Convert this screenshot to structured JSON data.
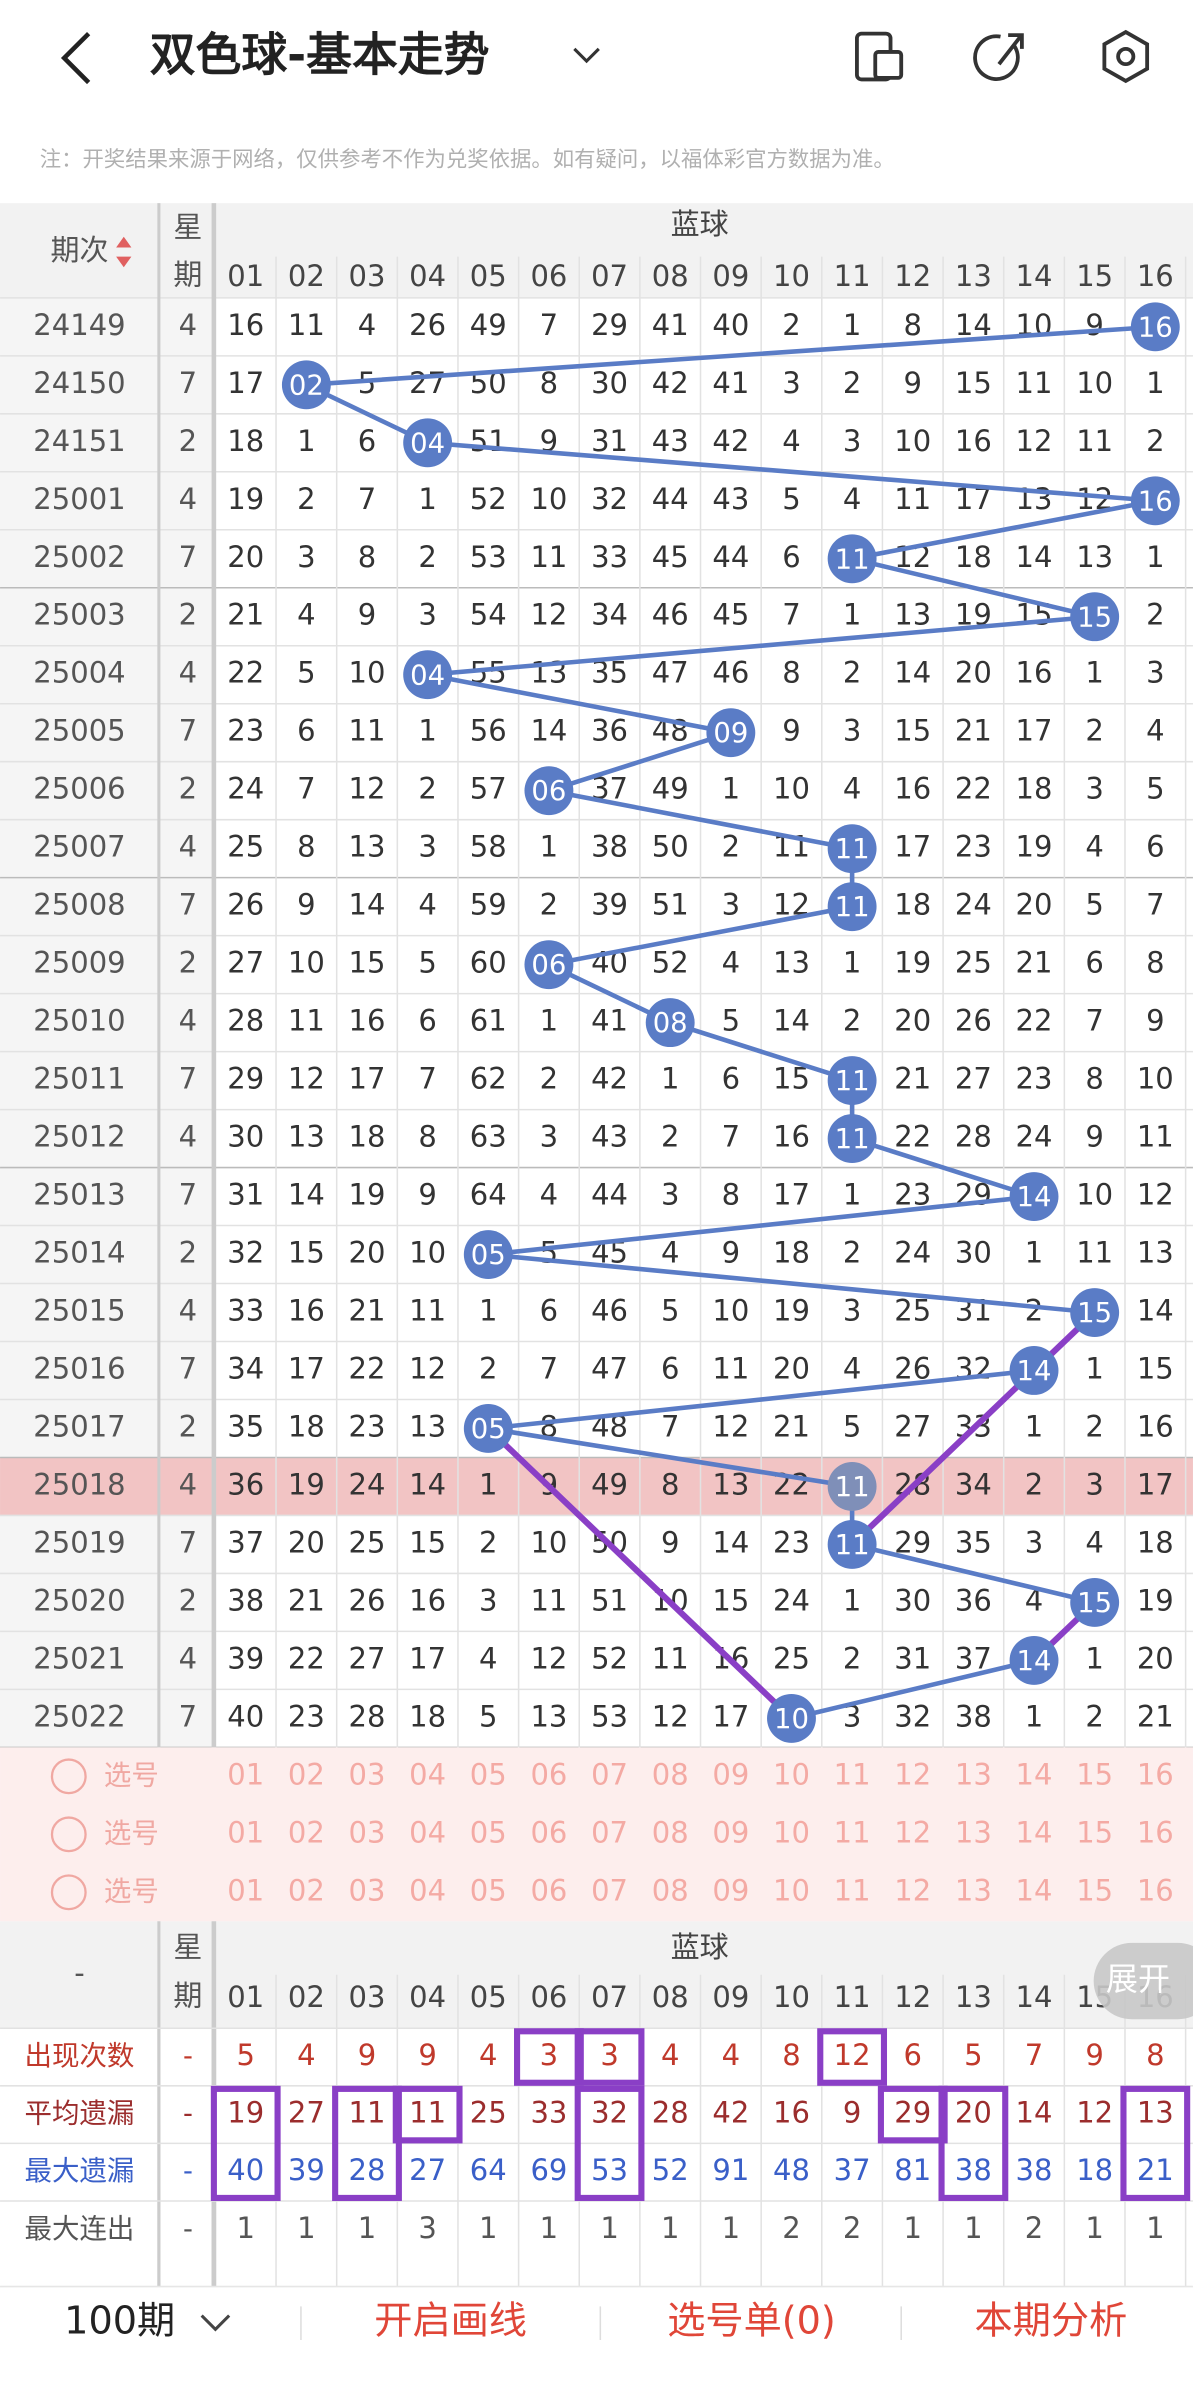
{
  "header": {
    "title": "双色球-基本走势"
  },
  "notice": "注：开奖结果来源于网络，仅供参考不作为兑奖依据。如有疑问，以福体彩官方数据为准。",
  "table": {
    "period_label": "期次",
    "weekday_label": "星期",
    "section": "蓝球",
    "columns": [
      "01",
      "02",
      "03",
      "04",
      "05",
      "06",
      "07",
      "08",
      "09",
      "10",
      "11",
      "12",
      "13",
      "14",
      "15",
      "16"
    ],
    "rows": [
      {
        "period": "24149",
        "weekday": "4",
        "cells": [
          "16",
          "11",
          "4",
          "26",
          "49",
          "7",
          "29",
          "41",
          "40",
          "2",
          "1",
          "8",
          "14",
          "10",
          "9",
          "16"
        ],
        "ball_col": 15
      },
      {
        "period": "24150",
        "weekday": "7",
        "cells": [
          "17",
          "02",
          "5",
          "27",
          "50",
          "8",
          "30",
          "42",
          "41",
          "3",
          "2",
          "9",
          "15",
          "11",
          "10",
          "1"
        ],
        "ball_col": 1
      },
      {
        "period": "24151",
        "weekday": "2",
        "cells": [
          "18",
          "1",
          "6",
          "04",
          "51",
          "9",
          "31",
          "43",
          "42",
          "4",
          "3",
          "10",
          "16",
          "12",
          "11",
          "2"
        ],
        "ball_col": 3
      },
      {
        "period": "25001",
        "weekday": "4",
        "cells": [
          "19",
          "2",
          "7",
          "1",
          "52",
          "10",
          "32",
          "44",
          "43",
          "5",
          "4",
          "11",
          "17",
          "13",
          "12",
          "16"
        ],
        "ball_col": 15
      },
      {
        "period": "25002",
        "weekday": "7",
        "cells": [
          "20",
          "3",
          "8",
          "2",
          "53",
          "11",
          "33",
          "45",
          "44",
          "6",
          "11",
          "12",
          "18",
          "14",
          "13",
          "1"
        ],
        "ball_col": 10
      },
      {
        "period": "25003",
        "weekday": "2",
        "cells": [
          "21",
          "4",
          "9",
          "3",
          "54",
          "12",
          "34",
          "46",
          "45",
          "7",
          "1",
          "13",
          "19",
          "15",
          "15",
          "2"
        ],
        "ball_col": 14
      },
      {
        "period": "25004",
        "weekday": "4",
        "cells": [
          "22",
          "5",
          "10",
          "04",
          "55",
          "13",
          "35",
          "47",
          "46",
          "8",
          "2",
          "14",
          "20",
          "16",
          "1",
          "3"
        ],
        "ball_col": 3
      },
      {
        "period": "25005",
        "weekday": "7",
        "cells": [
          "23",
          "6",
          "11",
          "1",
          "56",
          "14",
          "36",
          "48",
          "09",
          "9",
          "3",
          "15",
          "21",
          "17",
          "2",
          "4"
        ],
        "ball_col": 8
      },
      {
        "period": "25006",
        "weekday": "2",
        "cells": [
          "24",
          "7",
          "12",
          "2",
          "57",
          "06",
          "37",
          "49",
          "1",
          "10",
          "4",
          "16",
          "22",
          "18",
          "3",
          "5"
        ],
        "ball_col": 5
      },
      {
        "period": "25007",
        "weekday": "4",
        "cells": [
          "25",
          "8",
          "13",
          "3",
          "58",
          "1",
          "38",
          "50",
          "2",
          "11",
          "11",
          "17",
          "23",
          "19",
          "4",
          "6"
        ],
        "ball_col": 10
      },
      {
        "period": "25008",
        "weekday": "7",
        "cells": [
          "26",
          "9",
          "14",
          "4",
          "59",
          "2",
          "39",
          "51",
          "3",
          "12",
          "11",
          "18",
          "24",
          "20",
          "5",
          "7"
        ],
        "ball_col": 10
      },
      {
        "period": "25009",
        "weekday": "2",
        "cells": [
          "27",
          "10",
          "15",
          "5",
          "60",
          "06",
          "40",
          "52",
          "4",
          "13",
          "1",
          "19",
          "25",
          "21",
          "6",
          "8"
        ],
        "ball_col": 5
      },
      {
        "period": "25010",
        "weekday": "4",
        "cells": [
          "28",
          "11",
          "16",
          "6",
          "61",
          "1",
          "41",
          "08",
          "5",
          "14",
          "2",
          "20",
          "26",
          "22",
          "7",
          "9"
        ],
        "ball_col": 7
      },
      {
        "period": "25011",
        "weekday": "7",
        "cells": [
          "29",
          "12",
          "17",
          "7",
          "62",
          "2",
          "42",
          "1",
          "6",
          "15",
          "11",
          "21",
          "27",
          "23",
          "8",
          "10"
        ],
        "ball_col": 10
      },
      {
        "period": "25012",
        "weekday": "4",
        "cells": [
          "30",
          "13",
          "18",
          "8",
          "63",
          "3",
          "43",
          "2",
          "7",
          "16",
          "11",
          "22",
          "28",
          "24",
          "9",
          "11"
        ],
        "ball_col": 10
      },
      {
        "period": "25013",
        "weekday": "7",
        "cells": [
          "31",
          "14",
          "19",
          "9",
          "64",
          "4",
          "44",
          "3",
          "8",
          "17",
          "1",
          "23",
          "29",
          "14",
          "10",
          "12"
        ],
        "ball_col": 13
      },
      {
        "period": "25014",
        "weekday": "2",
        "cells": [
          "32",
          "15",
          "20",
          "10",
          "05",
          "5",
          "45",
          "4",
          "9",
          "18",
          "2",
          "24",
          "30",
          "1",
          "11",
          "13"
        ],
        "ball_col": 4
      },
      {
        "period": "25015",
        "weekday": "4",
        "cells": [
          "33",
          "16",
          "21",
          "11",
          "1",
          "6",
          "46",
          "5",
          "10",
          "19",
          "3",
          "25",
          "31",
          "2",
          "15",
          "14"
        ],
        "ball_col": 14
      },
      {
        "period": "25016",
        "weekday": "7",
        "cells": [
          "34",
          "17",
          "22",
          "12",
          "2",
          "7",
          "47",
          "6",
          "11",
          "20",
          "4",
          "26",
          "32",
          "14",
          "1",
          "15"
        ],
        "ball_col": 13
      },
      {
        "period": "25017",
        "weekday": "2",
        "cells": [
          "35",
          "18",
          "23",
          "13",
          "05",
          "8",
          "48",
          "7",
          "12",
          "21",
          "5",
          "27",
          "33",
          "1",
          "2",
          "16"
        ],
        "ball_col": 4
      },
      {
        "period": "25018",
        "weekday": "4",
        "cells": [
          "36",
          "19",
          "24",
          "14",
          "1",
          "9",
          "49",
          "8",
          "13",
          "22",
          "11",
          "28",
          "34",
          "2",
          "3",
          "17"
        ],
        "ball_col": 10,
        "highlighted": true
      },
      {
        "period": "25019",
        "weekday": "7",
        "cells": [
          "37",
          "20",
          "25",
          "15",
          "2",
          "10",
          "50",
          "9",
          "14",
          "23",
          "11",
          "29",
          "35",
          "3",
          "4",
          "18"
        ],
        "ball_col": 10
      },
      {
        "period": "25020",
        "weekday": "2",
        "cells": [
          "38",
          "21",
          "26",
          "16",
          "3",
          "11",
          "51",
          "10",
          "15",
          "24",
          "1",
          "30",
          "36",
          "4",
          "15",
          "19"
        ],
        "ball_col": 14
      },
      {
        "period": "25021",
        "weekday": "4",
        "cells": [
          "39",
          "22",
          "27",
          "17",
          "4",
          "12",
          "52",
          "11",
          "16",
          "25",
          "2",
          "31",
          "37",
          "14",
          "1",
          "20"
        ],
        "ball_col": 13
      },
      {
        "period": "25022",
        "weekday": "7",
        "cells": [
          "40",
          "23",
          "28",
          "18",
          "5",
          "13",
          "53",
          "12",
          "17",
          "10",
          "3",
          "32",
          "38",
          "1",
          "2",
          "21"
        ],
        "ball_col": 9
      }
    ]
  },
  "picker": {
    "labels": [
      "选号",
      "选号",
      "选号"
    ]
  },
  "stats": {
    "corner": "-",
    "weekday_label": "星期",
    "section": "蓝球",
    "expand": "展开",
    "rows": [
      {
        "label": "出现次数",
        "weekday": "-",
        "values": [
          5,
          4,
          9,
          9,
          4,
          3,
          3,
          4,
          4,
          8,
          12,
          6,
          5,
          7,
          9,
          8
        ]
      },
      {
        "label": "平均遗漏",
        "weekday": "-",
        "values": [
          19,
          27,
          11,
          11,
          25,
          33,
          32,
          28,
          42,
          16,
          9,
          29,
          20,
          14,
          12,
          13
        ]
      },
      {
        "label": "最大遗漏",
        "weekday": "-",
        "values": [
          40,
          39,
          28,
          27,
          64,
          69,
          53,
          52,
          91,
          48,
          37,
          81,
          38,
          38,
          18,
          21
        ]
      },
      {
        "label": "最大连出",
        "weekday": "-",
        "values": [
          1,
          1,
          1,
          3,
          1,
          1,
          1,
          1,
          1,
          2,
          2,
          1,
          1,
          2,
          1,
          1
        ]
      }
    ]
  },
  "footer": {
    "period": "100期",
    "draw": "开启画线",
    "picks": "选号单(0)",
    "analysis": "本期分析"
  }
}
